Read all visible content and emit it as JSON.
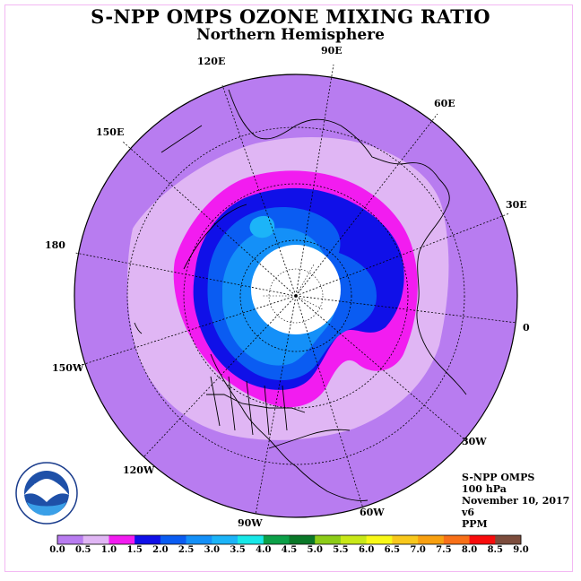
{
  "title": "S-NPP OMPS OZONE MIXING RATIO",
  "subtitle": "Northern Hemisphere",
  "longitude_labels": [
    "90E",
    "60E",
    "30E",
    "0",
    "30W",
    "60W",
    "90W",
    "120W",
    "150W",
    "180",
    "150E",
    "120E"
  ],
  "info": {
    "instrument": "S-NPP OMPS",
    "level": "100 hPa",
    "date": "November 10, 2017",
    "version": "v6",
    "unit": "PPM"
  },
  "legend": {
    "ticks": [
      "0.0",
      "0.5",
      "1.0",
      "1.5",
      "2.0",
      "2.5",
      "3.0",
      "3.5",
      "4.0",
      "4.5",
      "5.0",
      "5.5",
      "6.0",
      "6.5",
      "7.0",
      "7.5",
      "8.0",
      "8.5",
      "9.0"
    ],
    "colors": [
      "#b87cf0",
      "#e0b6f4",
      "#f21cf0",
      "#1010e8",
      "#0a5cf2",
      "#1490f8",
      "#1cb4f8",
      "#18e8e8",
      "#0ca048",
      "#0a7828",
      "#8ccc18",
      "#c8e818",
      "#f8f818",
      "#f8c81c",
      "#f8a010",
      "#f87018",
      "#f80c0c",
      "#7c4c3c"
    ]
  },
  "logo": {
    "text": "NOAA",
    "ring": "NATIONAL OCEANIC AND ATMOSPHERIC ADMINISTRATION"
  },
  "colors": {
    "background_band": "#b87cf0",
    "band_0_5_1_0": "#e0b6f4",
    "band_1_0_1_5": "#f21cf0",
    "band_1_5_2_0": "#1010e8",
    "band_2_0_2_5": "#0a5cf2",
    "band_2_5_3_0": "#1490f8"
  }
}
